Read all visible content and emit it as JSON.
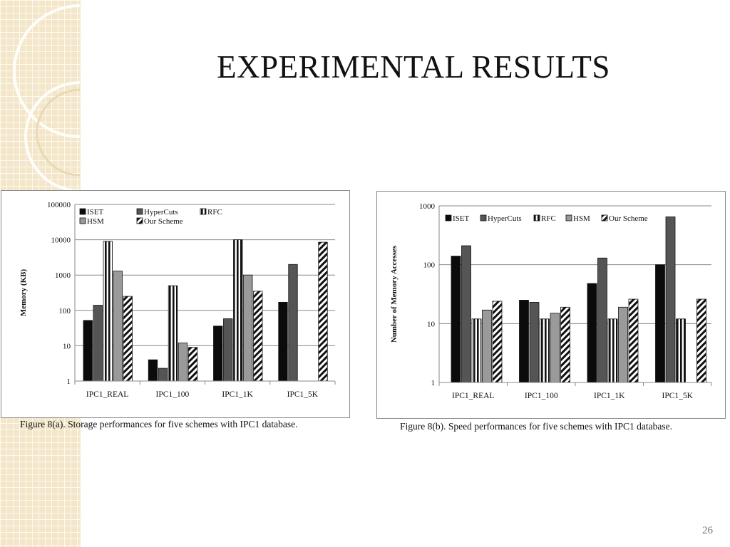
{
  "slide": {
    "title": "EXPERIMENTAL RESULTS",
    "number": "26"
  },
  "captions": {
    "figure_a": "Figure 8(a). Storage performances for five schemes with IPC1 database.",
    "figure_b": "Figure 8(b). Speed performances for five schemes with IPC1 database."
  },
  "chart_data": [
    {
      "type": "bar",
      "title": "",
      "xlabel": "",
      "ylabel": "Memory (KB)",
      "yscale": "log",
      "ylim": [
        1,
        100000
      ],
      "yticks": [
        "1",
        "10",
        "100",
        "1000",
        "10000",
        "100000"
      ],
      "grid": true,
      "legend": "top-left",
      "categories": [
        "IPC1_REAL",
        "IPC1_100",
        "IPC1_1K",
        "IPC1_5K"
      ],
      "series": [
        {
          "name": "ISET",
          "pattern": "black",
          "values": [
            52,
            4,
            36,
            170
          ]
        },
        {
          "name": "HyperCuts",
          "pattern": "dark-gray",
          "values": [
            140,
            2.3,
            58,
            2000
          ]
        },
        {
          "name": "RFC",
          "pattern": "vertical-stripes",
          "values": [
            9000,
            500,
            10000,
            null
          ]
        },
        {
          "name": "HSM",
          "pattern": "light-gray",
          "values": [
            1300,
            12,
            1000,
            null
          ]
        },
        {
          "name": "Our Scheme",
          "pattern": "diagonal-stripes",
          "values": [
            250,
            9,
            350,
            8500
          ]
        }
      ]
    },
    {
      "type": "bar",
      "title": "",
      "xlabel": "",
      "ylabel": "Number of Memory Accesses",
      "yscale": "log",
      "ylim": [
        1,
        1000
      ],
      "yticks": [
        "1",
        "10",
        "100",
        "1000"
      ],
      "grid": true,
      "legend": "top",
      "categories": [
        "IPC1_REAL",
        "IPC1_100",
        "IPC1_1K",
        "IPC1_5K"
      ],
      "series": [
        {
          "name": "ISET",
          "pattern": "black",
          "values": [
            140,
            25,
            48,
            100
          ]
        },
        {
          "name": "HyperCuts",
          "pattern": "dark-gray",
          "values": [
            210,
            23,
            130,
            650
          ]
        },
        {
          "name": "RFC",
          "pattern": "vertical-stripes",
          "values": [
            12,
            12,
            12,
            12
          ]
        },
        {
          "name": "HSM",
          "pattern": "light-gray",
          "values": [
            17,
            15,
            19,
            null
          ]
        },
        {
          "name": "Our Scheme",
          "pattern": "diagonal-stripes",
          "values": [
            24,
            19,
            26,
            26
          ]
        }
      ]
    }
  ]
}
